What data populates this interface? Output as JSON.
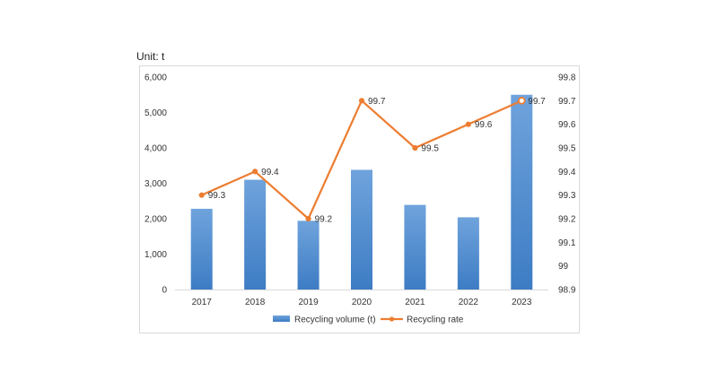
{
  "unit_label": "Unit: t",
  "colors": {
    "bar_top": "#6fa3dc",
    "bar_bottom": "#3d7cc4",
    "line": "#ed7d31",
    "grid": "#d9d9d9",
    "frame": "#d9d9d9"
  },
  "chart_data": {
    "type": "bar+line",
    "categories": [
      "2017",
      "2018",
      "2019",
      "2020",
      "2021",
      "2022",
      "2023"
    ],
    "series": [
      {
        "name": "Recycling volume (t)",
        "type": "bar",
        "axis": "left",
        "values": [
          2280,
          3100,
          1940,
          3380,
          2390,
          2040,
          5500
        ]
      },
      {
        "name": "Recycling rate",
        "type": "line",
        "axis": "right",
        "values": [
          99.3,
          99.4,
          99.2,
          99.7,
          99.5,
          99.6,
          99.7
        ],
        "labels": [
          "99.3",
          "99.4",
          "99.2",
          "99.7",
          "99.5",
          "99.6",
          "99.7"
        ]
      }
    ],
    "y_left": {
      "ylim": [
        0,
        6000
      ],
      "ticks": [
        0,
        1000,
        2000,
        3000,
        4000,
        5000,
        6000
      ],
      "tick_labels": [
        "0",
        "1,000",
        "2,000",
        "3,000",
        "4,000",
        "5,000",
        "6,000"
      ]
    },
    "y_right": {
      "ylim": [
        98.9,
        99.8
      ],
      "ticks": [
        98.9,
        99.0,
        99.1,
        99.2,
        99.3,
        99.4,
        99.5,
        99.6,
        99.7,
        99.8
      ],
      "tick_labels": [
        "98.9",
        "99",
        "99.1",
        "99.2",
        "99.3",
        "99.4",
        "99.5",
        "99.6",
        "99.7",
        "99.8"
      ]
    },
    "grid": false,
    "legend": "bottom"
  }
}
